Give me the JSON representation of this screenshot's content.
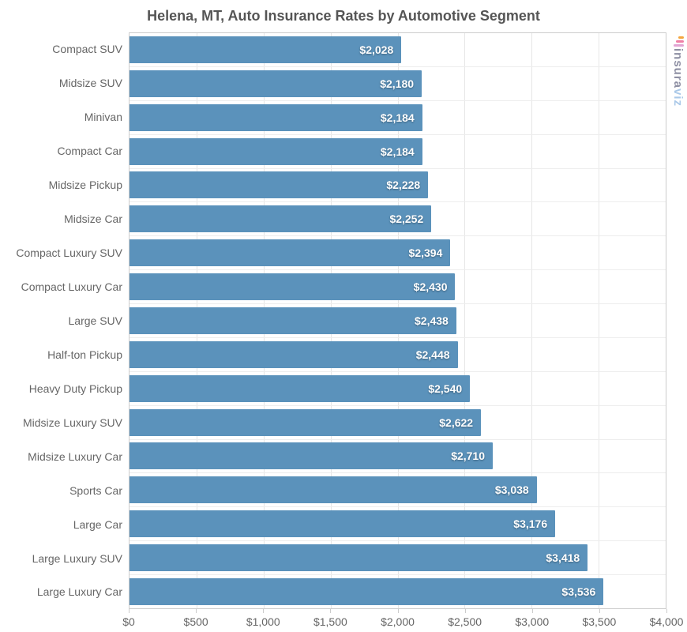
{
  "title": "Helena, MT, Auto Insurance Rates by Automotive Segment",
  "watermark": {
    "prefix": "insura",
    "suffix": "viz"
  },
  "chart_data": {
    "type": "bar",
    "orientation": "horizontal",
    "title": "Helena, MT, Auto Insurance Rates by Automotive Segment",
    "categories": [
      "Compact SUV",
      "Midsize SUV",
      "Minivan",
      "Compact Car",
      "Midsize Pickup",
      "Midsize Car",
      "Compact Luxury SUV",
      "Compact Luxury Car",
      "Large SUV",
      "Half-ton Pickup",
      "Heavy Duty Pickup",
      "Midsize Luxury SUV",
      "Midsize Luxury Car",
      "Sports Car",
      "Large Car",
      "Large Luxury SUV",
      "Large Luxury Car"
    ],
    "values": [
      2028,
      2180,
      2184,
      2184,
      2228,
      2252,
      2394,
      2430,
      2438,
      2448,
      2540,
      2622,
      2710,
      3038,
      3176,
      3418,
      3536
    ],
    "value_labels": [
      "$2,028",
      "$2,180",
      "$2,184",
      "$2,184",
      "$2,228",
      "$2,252",
      "$2,394",
      "$2,430",
      "$2,438",
      "$2,448",
      "$2,540",
      "$2,622",
      "$2,710",
      "$3,038",
      "$3,176",
      "$3,418",
      "$3,536"
    ],
    "xlabel": "",
    "ylabel": "",
    "xlim": [
      0,
      4000
    ],
    "x_ticks": [
      0,
      500,
      1000,
      1500,
      2000,
      2500,
      3000,
      3500,
      4000
    ],
    "x_tick_labels": [
      "$0",
      "$500",
      "$1,000",
      "$1,500",
      "$2,000",
      "$2,500",
      "$3,000",
      "$3,500",
      "$4,000"
    ],
    "grid": true,
    "legend": "none",
    "colors": {
      "bar": "#5b92bb",
      "bar_label": "#ffffff",
      "title": "#555555",
      "axis_label": "#666666",
      "gridline": "#e6e6e6",
      "plot_border": "#cccccc",
      "row_separator": "#ededed",
      "watermark_primary": "#8e8fa3",
      "watermark_accent": "#a9c8e8",
      "watermark_icon_bars": [
        "#f4a53f",
        "#ef7fa6",
        "#e2a4d4"
      ]
    }
  }
}
